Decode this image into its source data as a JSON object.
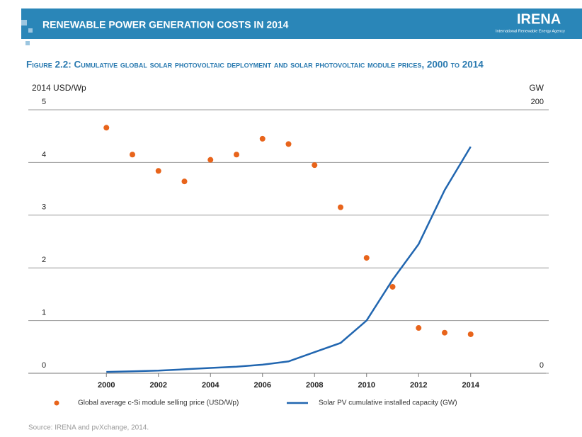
{
  "header": {
    "title": "RENEWABLE POWER GENERATION COSTS IN 2014",
    "logo": "IRENA",
    "logo_subtitle": "International Renewable Energy Agency"
  },
  "chart_data": {
    "type": "combo",
    "title": "Figure 2.2: Cumulative global solar photovoltaic deployment and solar photovoltaic module prices, 2000 to 2014",
    "y_label": "2014 USD/Wp",
    "y2_label": "GW",
    "x": [
      2000,
      2001,
      2002,
      2003,
      2004,
      2005,
      2006,
      2007,
      2008,
      2009,
      2010,
      2011,
      2012,
      2013,
      2014
    ],
    "xlim": [
      1997,
      2017
    ],
    "xticks": [
      2000,
      2002,
      2004,
      2006,
      2008,
      2010,
      2012,
      2014
    ],
    "ylim": [
      0,
      5
    ],
    "yticks": [
      0,
      1,
      2,
      3,
      4,
      5
    ],
    "y2lim": [
      0,
      200
    ],
    "y2ticks": [
      0,
      200
    ],
    "grid": true,
    "series": [
      {
        "name": "Global average c-Si module selling price (USD/Wp)",
        "type": "scatter",
        "color": "#e8641b",
        "values": [
          4.66,
          4.15,
          3.84,
          3.64,
          4.05,
          4.15,
          4.45,
          4.35,
          3.95,
          3.15,
          2.19,
          1.64,
          0.86,
          0.77,
          0.74
        ]
      },
      {
        "name": "Solar PV cumulative installed capacity (GW)",
        "type": "line",
        "color": "#2166b0",
        "axis": "y2",
        "values": [
          1,
          1.5,
          2,
          3,
          4,
          5,
          6.5,
          9,
          16,
          23,
          40,
          71,
          98,
          139,
          172
        ]
      }
    ]
  },
  "source": "Source: IRENA and pvXchange, 2014."
}
